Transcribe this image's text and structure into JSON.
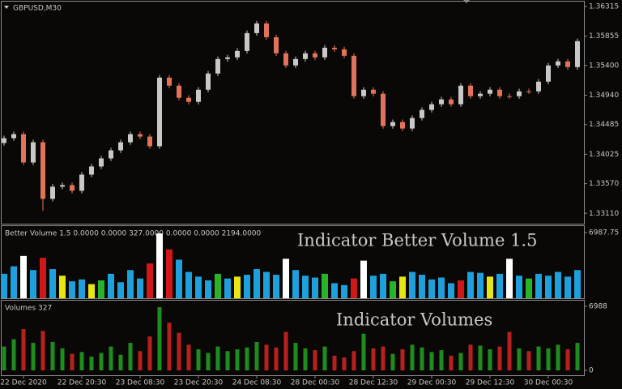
{
  "chart_data": [
    {
      "type": "candlestick",
      "title": "GBPUSD,M30",
      "up_color": "#c8c8c8",
      "down_color": "#e0735a",
      "ylim": [
        1.3295,
        1.3639
      ],
      "yticks": [
        1.36315,
        1.35855,
        {
          "value": 1.354,
          "label": "1.35400"
        },
        {
          "value": 1.3494,
          "label": "1.34940"
        },
        1.34485,
        1.34025,
        {
          "value": 1.3357,
          "label": "1.33570"
        },
        {
          "value": 1.3311,
          "label": "1.33110"
        }
      ],
      "open": [
        1.342,
        1.34274,
        1.34337,
        1.33898,
        1.34211,
        1.33335,
        1.33523,
        1.33548,
        1.3346,
        1.3371,
        1.33836,
        1.33961,
        1.34086,
        1.34211,
        1.34337,
        1.34299,
        1.34149,
        1.35213,
        1.35088,
        1.349,
        1.34837,
        1.35025,
        1.35276,
        1.35501,
        1.35526,
        1.35626,
        1.35902,
        1.36052,
        1.35839,
        1.35589,
        1.35401,
        1.35501,
        1.35589,
        1.35526,
        1.35676,
        1.35651,
        1.35551,
        1.34925,
        1.35025,
        1.34963,
        1.34462,
        1.34524,
        1.34424,
        1.34587,
        1.34712,
        1.348,
        1.34875,
        1.348,
        1.35088,
        1.34925,
        1.34963,
        1.35025,
        1.34925,
        1.34925,
        1.35,
        1.35,
        1.3515,
        1.35401,
        1.35464,
        1.35376
      ],
      "high": [
        1.34314,
        1.34377,
        1.34377,
        1.34251,
        1.34251,
        1.33563,
        1.33588,
        1.33588,
        1.3375,
        1.33876,
        1.34001,
        1.34126,
        1.34251,
        1.34377,
        1.34377,
        1.34339,
        1.35253,
        1.35253,
        1.35128,
        1.3494,
        1.35065,
        1.35316,
        1.35541,
        1.35566,
        1.35666,
        1.35942,
        1.36092,
        1.36092,
        1.35879,
        1.35629,
        1.35541,
        1.35629,
        1.35629,
        1.35716,
        1.35716,
        1.35691,
        1.35591,
        1.35065,
        1.35065,
        1.35003,
        1.34564,
        1.34564,
        1.34627,
        1.34752,
        1.3484,
        1.34915,
        1.34915,
        1.35128,
        1.35128,
        1.35003,
        1.35065,
        1.35065,
        1.34965,
        1.3504,
        1.3504,
        1.3519,
        1.35441,
        1.35504,
        1.35504,
        1.35817
      ],
      "low": [
        1.3416,
        1.34234,
        1.33858,
        1.33858,
        1.3315,
        1.33295,
        1.33483,
        1.3342,
        1.3342,
        1.3367,
        1.33796,
        1.33921,
        1.34046,
        1.34171,
        1.34259,
        1.34109,
        1.34109,
        1.35048,
        1.3486,
        1.34797,
        1.34797,
        1.34985,
        1.35236,
        1.35461,
        1.35486,
        1.35586,
        1.35862,
        1.35799,
        1.35549,
        1.35361,
        1.35361,
        1.35461,
        1.35486,
        1.35486,
        1.35611,
        1.35511,
        1.34885,
        1.34885,
        1.34923,
        1.34422,
        1.34422,
        1.34384,
        1.34384,
        1.34547,
        1.34672,
        1.3476,
        1.3476,
        1.3476,
        1.34885,
        1.34885,
        1.34923,
        1.34885,
        1.34885,
        1.34885,
        1.3496,
        1.3496,
        1.3511,
        1.35361,
        1.35336,
        1.35336
      ],
      "close": [
        1.34274,
        1.34337,
        1.33898,
        1.34211,
        1.33335,
        1.33523,
        1.33548,
        1.3346,
        1.3371,
        1.33836,
        1.33961,
        1.34086,
        1.34211,
        1.34337,
        1.34299,
        1.34149,
        1.35213,
        1.35088,
        1.349,
        1.34837,
        1.35025,
        1.35276,
        1.35501,
        1.35526,
        1.35626,
        1.35902,
        1.36052,
        1.35839,
        1.35589,
        1.35401,
        1.35501,
        1.35589,
        1.35526,
        1.35676,
        1.35651,
        1.35551,
        1.34925,
        1.35025,
        1.34963,
        1.34462,
        1.34524,
        1.34424,
        1.34587,
        1.34712,
        1.348,
        1.34875,
        1.348,
        1.35088,
        1.34925,
        1.34963,
        1.35025,
        1.34925,
        1.34925,
        1.35,
        1.35,
        1.3515,
        1.35401,
        1.35464,
        1.35376,
        1.35777
      ]
    },
    {
      "type": "bar",
      "title": "Better Volume 1.5 0.0000 0.0000 327.0000 0.0000 0.0000 2194.0000",
      "annotation": "Indicator Better Volume 1.5",
      "ylim": [
        0,
        7592
      ],
      "yticks": [
        6987.75
      ],
      "values": [
        2600,
        3400,
        4500,
        3000,
        4300,
        3100,
        2400,
        1800,
        2000,
        1500,
        1900,
        2600,
        1700,
        3000,
        2100,
        3700,
        6900,
        5200,
        4100,
        2800,
        2300,
        1900,
        2600,
        2100,
        2300,
        2500,
        3100,
        2800,
        2500,
        4200,
        3000,
        2400,
        2200,
        2600,
        1600,
        1400,
        2100,
        4000,
        2400,
        2600,
        1800,
        2300,
        2800,
        2500,
        2000,
        2200,
        1600,
        1900,
        2800,
        2700,
        2300,
        2600,
        4200,
        2400,
        2100,
        2600,
        2400,
        2800,
        2300,
        3000
      ],
      "colors": [
        "#1ea0dc",
        "#1ea0dc",
        "#ffffff",
        "#1ea0dc",
        "#d01818",
        "#1ea0dc",
        "#e6e614",
        "#1ea0dc",
        "#1ea0dc",
        "#e6e614",
        "#28b428",
        "#1ea0dc",
        "#1ea0dc",
        "#1ea0dc",
        "#1ea0dc",
        "#d01818",
        "#ffffff",
        "#d01818",
        "#1ea0dc",
        "#1ea0dc",
        "#1ea0dc",
        "#1ea0dc",
        "#28b428",
        "#1ea0dc",
        "#e6e614",
        "#1ea0dc",
        "#1ea0dc",
        "#1ea0dc",
        "#1ea0dc",
        "#ffffff",
        "#1ea0dc",
        "#1ea0dc",
        "#1ea0dc",
        "#28b428",
        "#1ea0dc",
        "#1ea0dc",
        "#d01818",
        "#ffffff",
        "#1ea0dc",
        "#1ea0dc",
        "#28b428",
        "#e6e614",
        "#1ea0dc",
        "#1ea0dc",
        "#1ea0dc",
        "#1ea0dc",
        "#1ea0dc",
        "#d01818",
        "#1ea0dc",
        "#1ea0dc",
        "#e6e614",
        "#1ea0dc",
        "#ffffff",
        "#1ea0dc",
        "#28b428",
        "#1ea0dc",
        "#1ea0dc",
        "#1ea0dc",
        "#1ea0dc",
        "#1ea0dc"
      ]
    },
    {
      "type": "bar",
      "title": "Volumes 327",
      "annotation": "Indicator Volumes",
      "ylim": [
        -531,
        7519
      ],
      "yticks": [
        6988,
        0
      ],
      "categories": [
        null,
        null,
        "22 Dec 2020",
        null,
        null,
        null,
        null,
        null,
        "22 Dec 20:30",
        null,
        null,
        null,
        null,
        null,
        "23 Dec 08:30",
        null,
        null,
        null,
        null,
        null,
        "23 Dec 20:30",
        null,
        null,
        null,
        null,
        null,
        "24 Dec 08:30",
        null,
        null,
        null,
        null,
        null,
        "28 Dec 00:30",
        null,
        null,
        null,
        null,
        null,
        "28 Dec 12:30",
        null,
        null,
        null,
        null,
        null,
        "29 Dec 00:30",
        null,
        null,
        null,
        null,
        null,
        "29 Dec 12:30",
        null,
        null,
        null,
        null,
        null,
        "30 Dec 00:30",
        null,
        null,
        null
      ],
      "values": [
        2600,
        3400,
        4500,
        3000,
        4300,
        3100,
        2400,
        1800,
        2000,
        1500,
        1900,
        2600,
        1700,
        3000,
        2100,
        3700,
        6900,
        5200,
        4100,
        2800,
        2300,
        1900,
        2600,
        2100,
        2300,
        2500,
        3100,
        2800,
        2500,
        4200,
        3000,
        2400,
        2200,
        2600,
        1600,
        1400,
        2100,
        4000,
        2400,
        2600,
        1800,
        2300,
        2800,
        2500,
        2000,
        2200,
        1600,
        1900,
        2800,
        2700,
        2300,
        2600,
        4200,
        2400,
        2100,
        2600,
        2400,
        2800,
        2300,
        3000
      ],
      "colors": [
        "#1e8c1e",
        "#1e8c1e",
        "#b82020",
        "#1e8c1e",
        "#b82020",
        "#1e8c1e",
        "#1e8c1e",
        "#b82020",
        "#1e8c1e",
        "#1e8c1e",
        "#1e8c1e",
        "#1e8c1e",
        "#1e8c1e",
        "#1e8c1e",
        "#b82020",
        "#b82020",
        "#1e8c1e",
        "#b82020",
        "#b82020",
        "#b82020",
        "#1e8c1e",
        "#1e8c1e",
        "#1e8c1e",
        "#1e8c1e",
        "#1e8c1e",
        "#1e8c1e",
        "#1e8c1e",
        "#b82020",
        "#b82020",
        "#b82020",
        "#1e8c1e",
        "#1e8c1e",
        "#b82020",
        "#1e8c1e",
        "#b82020",
        "#b82020",
        "#b82020",
        "#1e8c1e",
        "#b82020",
        "#b82020",
        "#1e8c1e",
        "#b82020",
        "#1e8c1e",
        "#1e8c1e",
        "#1e8c1e",
        "#1e8c1e",
        "#b82020",
        "#1e8c1e",
        "#b82020",
        "#1e8c1e",
        "#1e8c1e",
        "#b82020",
        "#b82020",
        "#1e8c1e",
        "#b82020",
        "#1e8c1e",
        "#1e8c1e",
        "#1e8c1e",
        "#b82020",
        "#1e8c1e"
      ]
    }
  ]
}
